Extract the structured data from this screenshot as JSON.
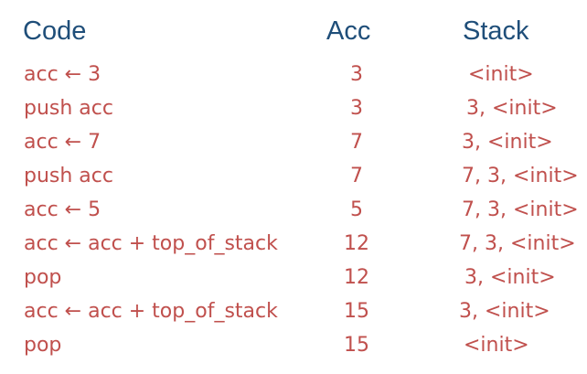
{
  "headers": {
    "code": "Code",
    "acc": "Acc",
    "stack": "Stack"
  },
  "rows": [
    {
      "code": "acc ← 3",
      "acc": "3",
      "stack": "<init>"
    },
    {
      "code": "push acc",
      "acc": "3",
      "stack": "3, <init>"
    },
    {
      "code": "acc ← 7",
      "acc": "7",
      "stack": "3, <init>"
    },
    {
      "code": "push acc",
      "acc": "7",
      "stack": "7, 3, <init>"
    },
    {
      "code": "acc ← 5",
      "acc": "5",
      "stack": "7, 3, <init>"
    },
    {
      "code": "acc ← acc + top_of_stack",
      "acc": "12",
      "stack": "7, 3, <init>"
    },
    {
      "code": "pop",
      "acc": "12",
      "stack": "3, <init>"
    },
    {
      "code": "acc ← acc + top_of_stack",
      "acc": "15",
      "stack": "3, <init>"
    },
    {
      "code": "pop",
      "acc": "15",
      "stack": "<init>"
    }
  ],
  "colors": {
    "header": "#1f4e79",
    "body": "#c0504d"
  }
}
